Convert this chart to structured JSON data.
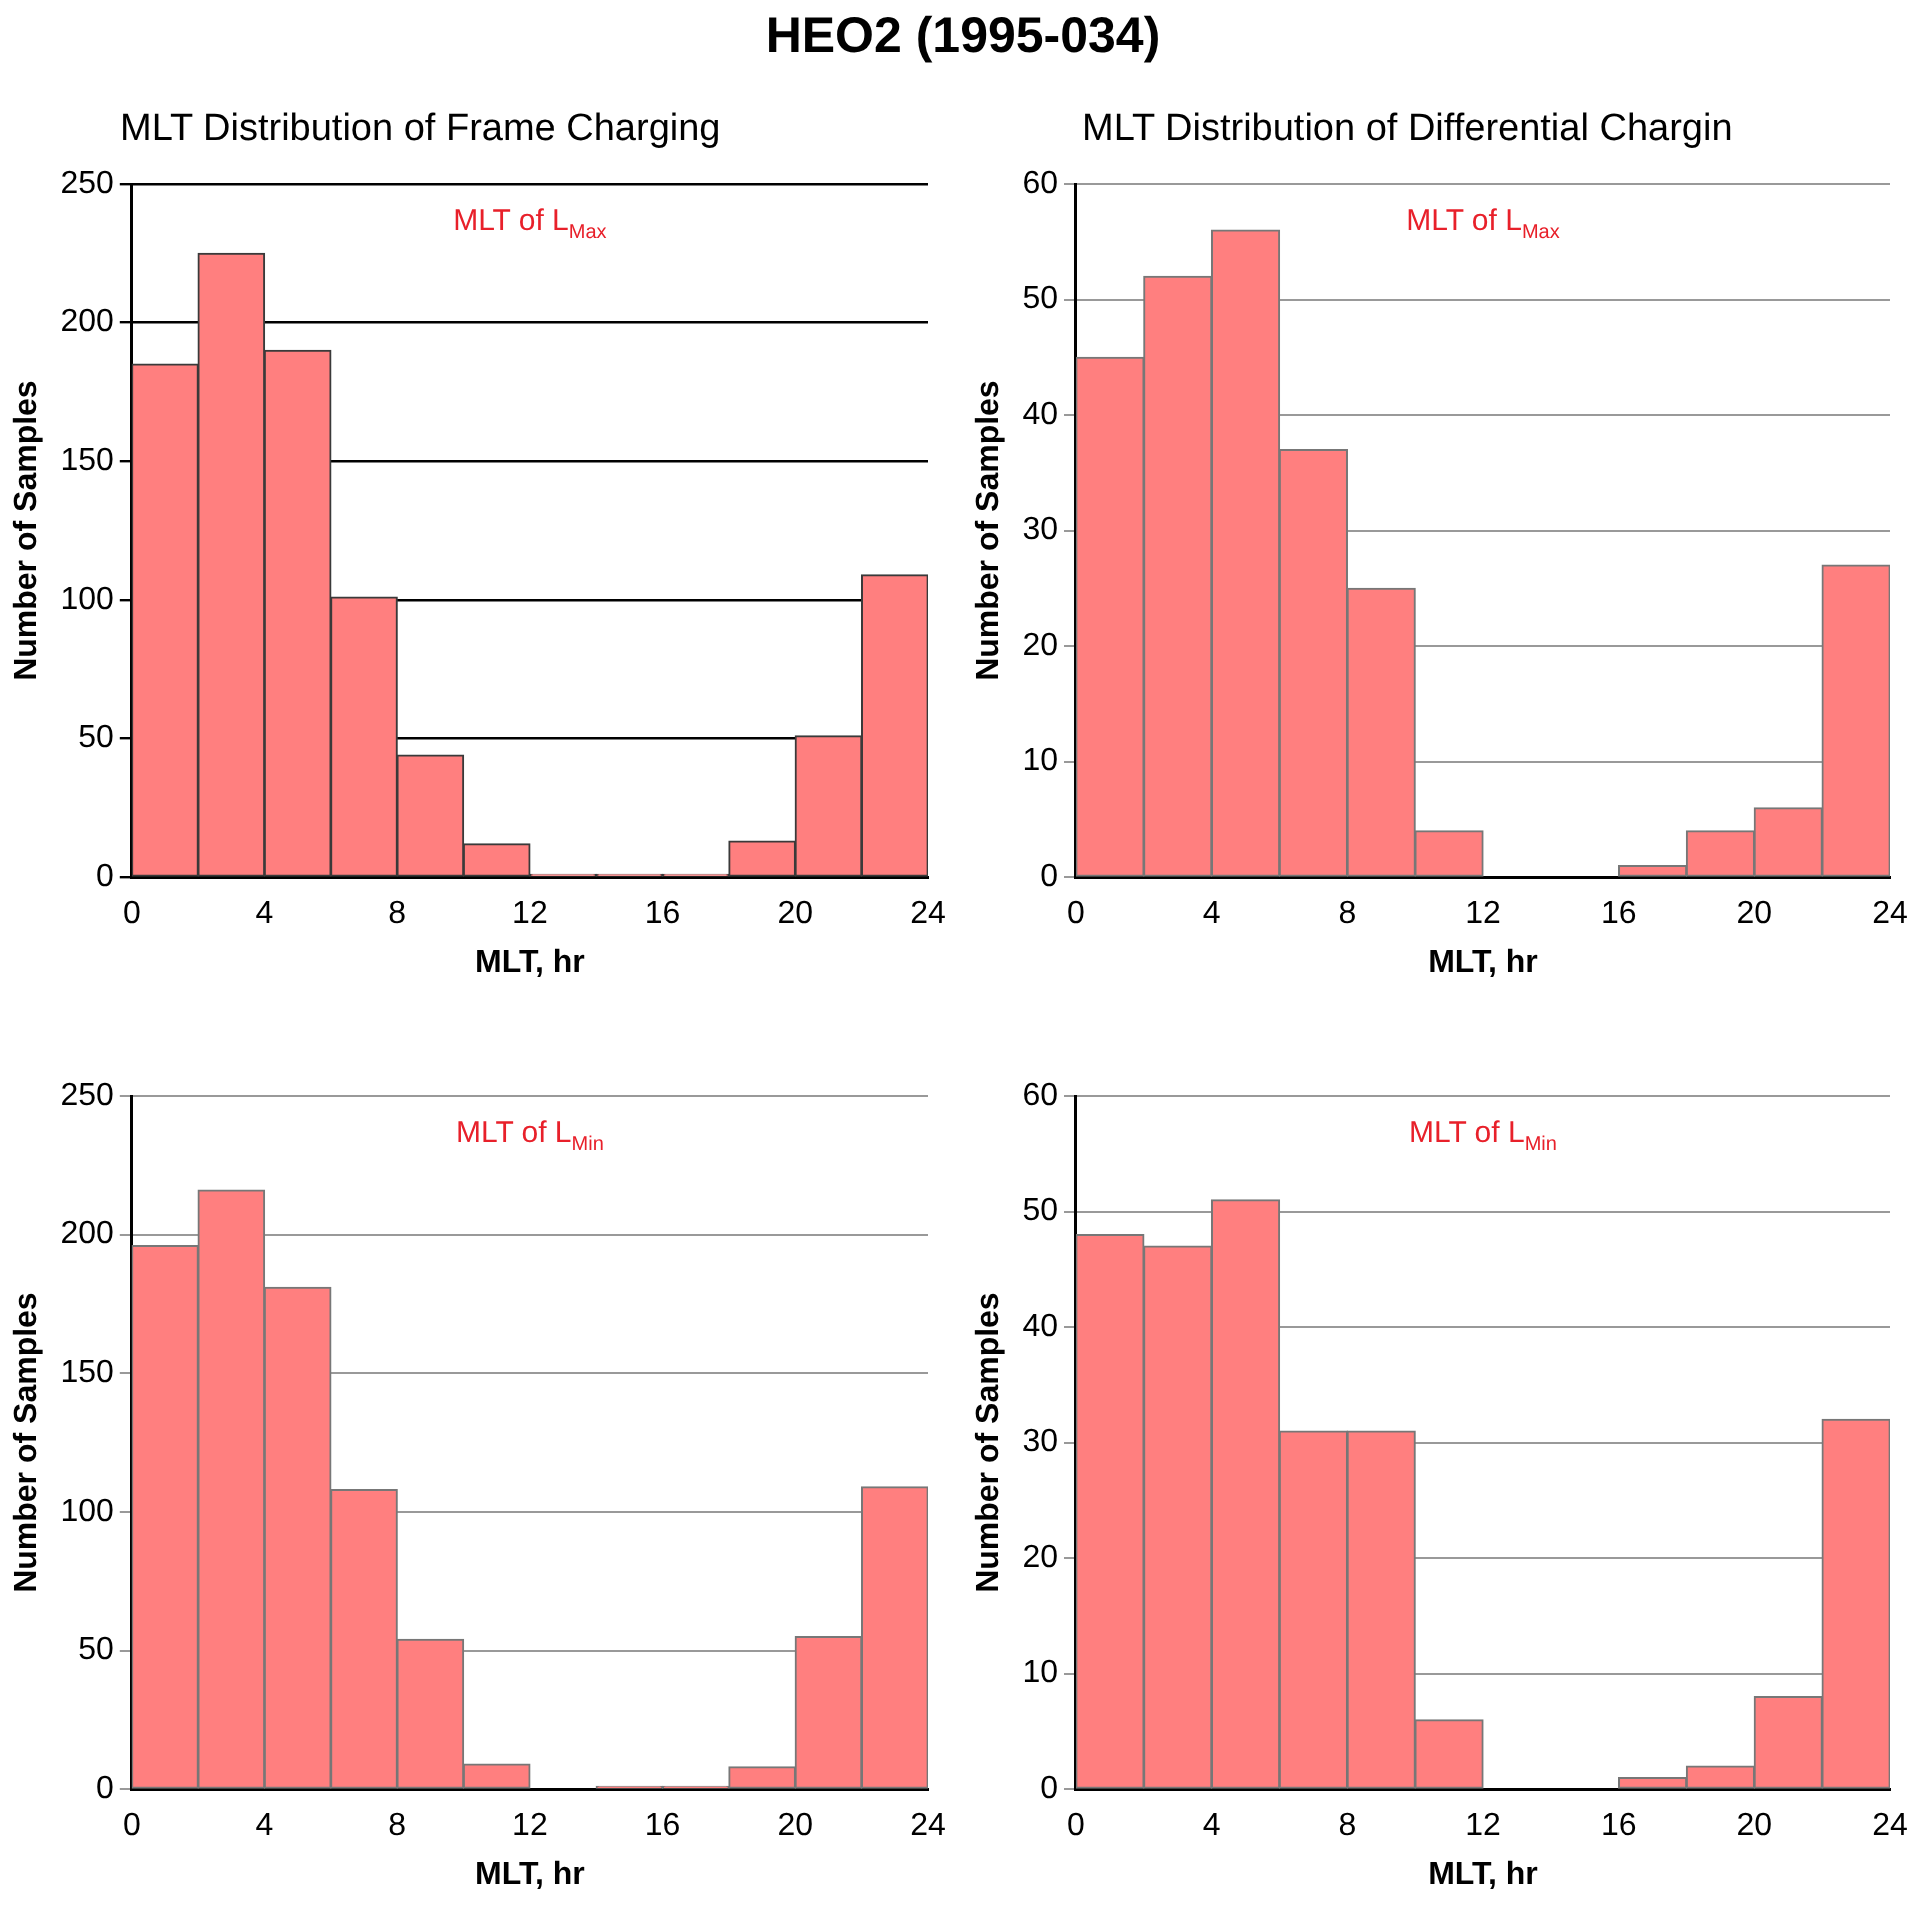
{
  "chart_data": [
    {
      "type": "histogram",
      "title": "HEO2  (1995-034)",
      "subtitle": "MLT Distribution of Frame Charging",
      "xlabel": "MLT, hr",
      "ylabel": "Number of Samples",
      "annotations": [
        "MLT of L$_{Max}$"
      ],
      "bins": [
        0,
        2,
        4,
        6,
        8,
        10,
        12,
        14,
        16,
        18,
        20,
        22,
        24
      ],
      "values": [
        185,
        225,
        190,
        101,
        44,
        12,
        1,
        1,
        1,
        13,
        51,
        109
      ],
      "color": "#ff7f7f",
      "xlim": [
        0,
        24
      ],
      "xticks": [
        0,
        4,
        8,
        12,
        16,
        20,
        24
      ],
      "ylim": [
        0,
        250
      ],
      "yticks": [
        0,
        50,
        100,
        150,
        200,
        250
      ],
      "grid": "y",
      "legend": false
    },
    {
      "type": "histogram",
      "title": "MLT Distribution of Differential Chargin",
      "xlabel": "MLT, hr",
      "ylabel": "Number of Samples",
      "annotations": [
        "MLT of L$_{Max}$"
      ],
      "bins": [
        0,
        2,
        4,
        6,
        8,
        10,
        12,
        14,
        16,
        18,
        20,
        22,
        24
      ],
      "values": [
        45,
        52,
        56,
        37,
        25,
        4,
        0,
        0,
        1,
        4,
        6,
        27
      ],
      "color": "#ff7f7f",
      "xlim": [
        0,
        24
      ],
      "xticks": [
        0,
        4,
        8,
        12,
        16,
        20,
        24
      ],
      "ylim": [
        0,
        60
      ],
      "yticks": [
        0,
        10,
        20,
        30,
        40,
        50,
        60
      ],
      "grid": "y",
      "legend": false
    },
    {
      "type": "histogram",
      "xlabel": "MLT, hr",
      "ylabel": "Number of Samples",
      "annotations": [
        "MLT of L$_{Min}$"
      ],
      "bins": [
        0,
        2,
        4,
        6,
        8,
        10,
        12,
        14,
        16,
        18,
        20,
        22,
        24
      ],
      "values": [
        196,
        216,
        181,
        108,
        54,
        9,
        0,
        1,
        1,
        8,
        55,
        109
      ],
      "color": "#ff7f7f",
      "xlim": [
        0,
        24
      ],
      "xticks": [
        0,
        4,
        8,
        12,
        16,
        20,
        24
      ],
      "ylim": [
        0,
        250
      ],
      "yticks": [
        0,
        50,
        100,
        150,
        200,
        250
      ],
      "grid": "y",
      "legend": false
    },
    {
      "type": "histogram",
      "xlabel": "MLT, hr",
      "ylabel": "Number of Samples",
      "annotations": [
        "MLT of L$_{Min}$"
      ],
      "bins": [
        0,
        2,
        4,
        6,
        8,
        10,
        12,
        14,
        16,
        18,
        20,
        22,
        24
      ],
      "values": [
        48,
        47,
        51,
        31,
        31,
        6,
        0,
        0,
        1,
        2,
        8,
        32
      ],
      "color": "#ff7f7f",
      "xlim": [
        0,
        24
      ],
      "xticks": [
        0,
        4,
        8,
        12,
        16,
        20,
        24
      ],
      "ylim": [
        0,
        60
      ],
      "yticks": [
        0,
        10,
        20,
        30,
        40,
        50,
        60
      ],
      "grid": "y",
      "legend": false
    }
  ]
}
